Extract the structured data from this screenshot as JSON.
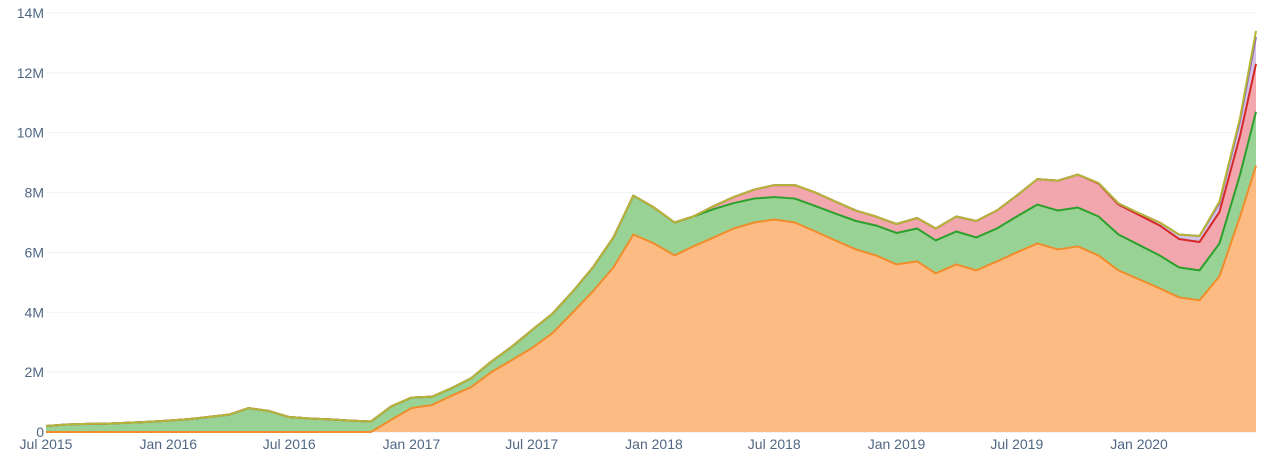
{
  "chart_data": {
    "type": "area",
    "stacked": true,
    "title": "",
    "xlabel": "",
    "ylabel": "",
    "grid": true,
    "legend": "none",
    "x_range": [
      "2015-07-01",
      "2020-06-25"
    ],
    "ylim": [
      0,
      14000000
    ],
    "y_ticks": [
      0,
      2000000,
      4000000,
      6000000,
      8000000,
      10000000,
      12000000,
      14000000
    ],
    "y_tick_labels": [
      "0",
      "2M",
      "4M",
      "6M",
      "8M",
      "10M",
      "12M",
      "14M"
    ],
    "x_ticks": [
      "2015-07-01",
      "2016-01-01",
      "2016-07-01",
      "2017-01-01",
      "2017-07-01",
      "2018-01-01",
      "2018-07-01",
      "2019-01-01",
      "2019-07-01",
      "2020-01-01"
    ],
    "x_tick_labels": [
      "Jul 2015",
      "Jan 2016",
      "Jul 2016",
      "Jan 2017",
      "Jul 2017",
      "Jan 2018",
      "Jul 2018",
      "Jan 2019",
      "Jul 2019",
      "Jan 2020"
    ],
    "x": [
      "2015-07-01",
      "2015-08-01",
      "2015-09-01",
      "2015-10-01",
      "2015-11-01",
      "2015-12-01",
      "2016-01-01",
      "2016-02-01",
      "2016-03-01",
      "2016-04-01",
      "2016-05-01",
      "2016-06-01",
      "2016-07-01",
      "2016-08-01",
      "2016-09-01",
      "2016-10-01",
      "2016-11-01",
      "2016-12-01",
      "2017-01-01",
      "2017-02-01",
      "2017-03-01",
      "2017-04-01",
      "2017-05-01",
      "2017-06-01",
      "2017-07-01",
      "2017-08-01",
      "2017-09-01",
      "2017-10-01",
      "2017-11-01",
      "2017-12-01",
      "2018-01-01",
      "2018-02-01",
      "2018-03-01",
      "2018-04-01",
      "2018-05-01",
      "2018-06-01",
      "2018-07-01",
      "2018-08-01",
      "2018-09-01",
      "2018-10-01",
      "2018-11-01",
      "2018-12-01",
      "2019-01-01",
      "2019-02-01",
      "2019-03-01",
      "2019-04-01",
      "2019-05-01",
      "2019-06-01",
      "2019-07-01",
      "2019-08-01",
      "2019-09-01",
      "2019-10-01",
      "2019-11-01",
      "2019-12-01",
      "2020-01-01",
      "2020-02-01",
      "2020-03-01",
      "2020-04-01",
      "2020-05-01",
      "2020-06-01",
      "2020-06-25"
    ],
    "series": [
      {
        "color": "#fdbb84",
        "line_color": "#f08c2a",
        "values": [
          0,
          0,
          0,
          0,
          0,
          0,
          0,
          0,
          0,
          0,
          0,
          0,
          0,
          0,
          0,
          0,
          0,
          400000,
          800000,
          900000,
          1200000,
          1500000,
          2000000,
          2400000,
          2800000,
          3300000,
          4000000,
          4700000,
          5500000,
          6600000,
          6300000,
          5900000,
          6200000,
          6500000,
          6800000,
          7000000,
          7100000,
          7000000,
          6700000,
          6400000,
          6100000,
          5900000,
          5600000,
          5700000,
          5300000,
          5600000,
          5400000,
          5700000,
          6000000,
          6300000,
          6100000,
          6200000,
          5900000,
          5400000,
          5100000,
          4800000,
          4500000,
          4400000,
          5200000,
          7200000,
          8900000
        ]
      },
      {
        "color": "#98d395",
        "line_color": "#2ca02c",
        "values": [
          200000,
          250000,
          270000,
          280000,
          310000,
          340000,
          380000,
          430000,
          500000,
          580000,
          800000,
          700000,
          500000,
          450000,
          420000,
          380000,
          350000,
          450000,
          350000,
          280000,
          250000,
          300000,
          350000,
          450000,
          600000,
          650000,
          700000,
          800000,
          1000000,
          1300000,
          1200000,
          1100000,
          1000000,
          950000,
          850000,
          800000,
          750000,
          800000,
          850000,
          900000,
          950000,
          1000000,
          1050000,
          1100000,
          1100000,
          1100000,
          1100000,
          1100000,
          1200000,
          1300000,
          1300000,
          1300000,
          1300000,
          1200000,
          1150000,
          1100000,
          1000000,
          1000000,
          1100000,
          1400000,
          1800000
        ]
      },
      {
        "color": "#f2a6ae",
        "line_color": "#d62728",
        "values": [
          0,
          0,
          0,
          0,
          0,
          0,
          0,
          0,
          0,
          0,
          0,
          0,
          0,
          0,
          0,
          0,
          0,
          0,
          0,
          0,
          0,
          0,
          0,
          0,
          0,
          0,
          0,
          0,
          0,
          0,
          0,
          0,
          0,
          100000,
          200000,
          300000,
          400000,
          450000,
          450000,
          400000,
          350000,
          300000,
          300000,
          350000,
          400000,
          500000,
          550000,
          600000,
          700000,
          850000,
          1000000,
          1100000,
          1100000,
          1000000,
          1000000,
          1000000,
          950000,
          950000,
          1050000,
          1300000,
          1600000
        ]
      },
      {
        "color": "#d3c4e6",
        "line_color": "#9467bd",
        "values": [
          0,
          0,
          0,
          0,
          0,
          0,
          0,
          0,
          0,
          0,
          0,
          0,
          0,
          0,
          0,
          0,
          0,
          0,
          0,
          0,
          0,
          0,
          0,
          0,
          0,
          0,
          0,
          0,
          0,
          0,
          0,
          0,
          0,
          0,
          0,
          0,
          0,
          0,
          0,
          0,
          0,
          0,
          0,
          0,
          0,
          0,
          0,
          0,
          0,
          0,
          0,
          0,
          20000,
          40000,
          60000,
          100000,
          150000,
          200000,
          300000,
          500000,
          900000
        ]
      },
      {
        "color": "#e8e8a0",
        "line_color": "#b5b536",
        "values": [
          0,
          0,
          0,
          0,
          0,
          0,
          0,
          0,
          0,
          0,
          0,
          0,
          0,
          0,
          0,
          0,
          0,
          0,
          0,
          0,
          0,
          0,
          0,
          0,
          0,
          0,
          0,
          0,
          0,
          0,
          0,
          0,
          0,
          0,
          0,
          0,
          0,
          0,
          0,
          0,
          0,
          0,
          0,
          0,
          0,
          0,
          0,
          0,
          0,
          0,
          0,
          0,
          0,
          0,
          0,
          0,
          0,
          0,
          50000,
          100000,
          200000
        ]
      }
    ]
  }
}
